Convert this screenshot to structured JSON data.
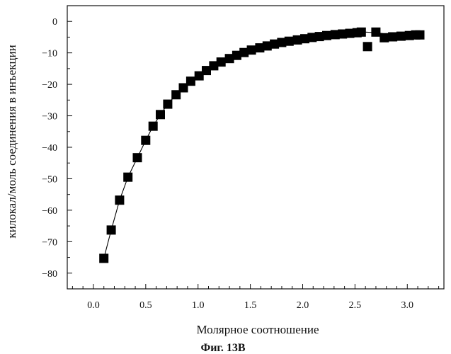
{
  "figure": {
    "caption": "Фиг. 13В"
  },
  "chart_data": {
    "type": "scatter",
    "xlabel": "Молярное соотношение",
    "ylabel": "килокал/моль соединения в инъекции",
    "xlim": [
      -0.25,
      3.35
    ],
    "ylim": [
      -85,
      5
    ],
    "x_ticks": [
      0.0,
      0.5,
      1.0,
      1.5,
      2.0,
      2.5,
      3.0
    ],
    "x_tick_labels": [
      "0.0",
      "0.5",
      "1.0",
      "1.5",
      "2.0",
      "2.5",
      "3.0"
    ],
    "y_ticks": [
      0,
      -10,
      -20,
      -30,
      -40,
      -50,
      -60,
      -70,
      -80
    ],
    "y_tick_labels": [
      "0",
      "−10",
      "−20",
      "−30",
      "−40",
      "−50",
      "−60",
      "−70",
      "−80"
    ],
    "grid": false,
    "series": [
      {
        "marker": "filled-square",
        "color": "#000000",
        "points": [
          [
            0.1,
            -75.3
          ],
          [
            0.17,
            -66.3
          ],
          [
            0.25,
            -56.8
          ],
          [
            0.33,
            -49.5
          ],
          [
            0.42,
            -43.3
          ],
          [
            0.5,
            -37.8
          ],
          [
            0.57,
            -33.3
          ],
          [
            0.64,
            -29.6
          ],
          [
            0.71,
            -26.3
          ],
          [
            0.79,
            -23.3
          ],
          [
            0.86,
            -21.1
          ],
          [
            0.93,
            -19.0
          ],
          [
            1.01,
            -17.3
          ],
          [
            1.08,
            -15.6
          ],
          [
            1.15,
            -14.1
          ],
          [
            1.22,
            -12.9
          ],
          [
            1.3,
            -11.8
          ],
          [
            1.37,
            -10.8
          ],
          [
            1.44,
            -9.9
          ],
          [
            1.51,
            -9.1
          ],
          [
            1.59,
            -8.4
          ],
          [
            1.66,
            -7.8
          ],
          [
            1.73,
            -7.2
          ],
          [
            1.8,
            -6.7
          ],
          [
            1.87,
            -6.3
          ],
          [
            1.95,
            -5.9
          ],
          [
            2.02,
            -5.5
          ],
          [
            2.09,
            -5.1
          ],
          [
            2.16,
            -4.8
          ],
          [
            2.23,
            -4.5
          ],
          [
            2.31,
            -4.2
          ],
          [
            2.38,
            -4.0
          ],
          [
            2.45,
            -3.8
          ],
          [
            2.52,
            -3.6
          ],
          [
            2.56,
            -3.4
          ],
          [
            2.62,
            -8.0
          ],
          [
            2.7,
            -3.4
          ],
          [
            2.78,
            -5.2
          ],
          [
            2.86,
            -4.9
          ],
          [
            2.94,
            -4.7
          ],
          [
            3.02,
            -4.5
          ],
          [
            3.08,
            -4.3
          ],
          [
            3.12,
            -4.3
          ]
        ]
      }
    ],
    "fit_line": {
      "color": "#000000",
      "points": [
        [
          0.1,
          -75.3
        ],
        [
          0.17,
          -66.3
        ],
        [
          0.25,
          -56.8
        ],
        [
          0.33,
          -49.5
        ],
        [
          0.42,
          -43.3
        ],
        [
          0.5,
          -37.8
        ],
        [
          0.57,
          -33.3
        ],
        [
          0.64,
          -29.6
        ],
        [
          0.71,
          -26.3
        ],
        [
          0.79,
          -23.3
        ],
        [
          0.86,
          -21.1
        ],
        [
          0.93,
          -19.0
        ],
        [
          1.01,
          -17.3
        ],
        [
          1.08,
          -15.6
        ],
        [
          1.15,
          -14.1
        ],
        [
          1.22,
          -12.9
        ],
        [
          1.3,
          -11.8
        ],
        [
          1.37,
          -10.8
        ],
        [
          1.44,
          -9.9
        ],
        [
          1.51,
          -9.1
        ],
        [
          1.59,
          -8.4
        ],
        [
          1.66,
          -7.8
        ],
        [
          1.73,
          -7.2
        ],
        [
          1.8,
          -6.7
        ],
        [
          1.87,
          -6.3
        ],
        [
          1.95,
          -5.9
        ],
        [
          2.02,
          -5.5
        ],
        [
          2.09,
          -5.1
        ],
        [
          2.16,
          -4.8
        ],
        [
          2.23,
          -4.5
        ],
        [
          2.31,
          -4.2
        ],
        [
          2.38,
          -4.0
        ],
        [
          2.45,
          -3.8
        ],
        [
          2.52,
          -3.6
        ],
        [
          2.6,
          -3.4
        ],
        [
          2.7,
          -3.6
        ],
        [
          2.8,
          -4.0
        ],
        [
          2.9,
          -4.2
        ],
        [
          3.0,
          -4.3
        ],
        [
          3.12,
          -4.3
        ]
      ]
    }
  }
}
